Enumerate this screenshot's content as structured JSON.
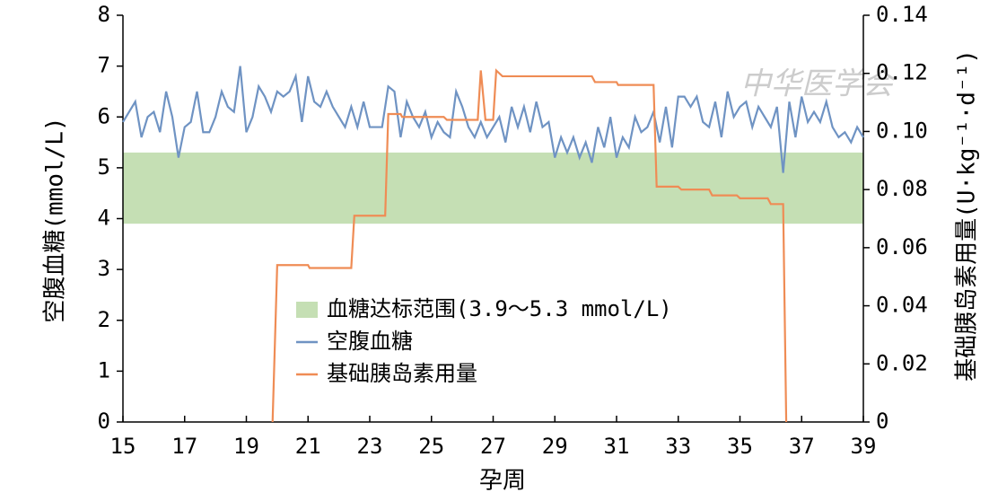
{
  "chart_data": {
    "type": "line",
    "x_label": "孕周",
    "y_label": "空腹血糖(mmol/L)",
    "y2_label": "基础胰岛素用量(U·kg⁻¹·d⁻¹)",
    "watermark": "中华医学会",
    "xlim": [
      15,
      39
    ],
    "xticks": [
      15,
      17,
      19,
      21,
      23,
      25,
      27,
      29,
      31,
      33,
      35,
      37,
      39
    ],
    "ylim": [
      0,
      8
    ],
    "yticks": [
      0,
      1,
      2,
      3,
      4,
      5,
      6,
      7,
      8
    ],
    "y2lim": [
      0,
      0.14
    ],
    "y2ticks": [
      0,
      0.02,
      0.04,
      0.06,
      0.08,
      {
        "value": 0.1,
        "label": "0.10"
      },
      0.12,
      0.14
    ],
    "band": {
      "name": "血糖达标范围(3.9～5.3 mmol/L)",
      "color": "#c5dfb4",
      "range": [
        3.9,
        5.3
      ]
    },
    "series": [
      {
        "name": "空腹血糖",
        "color": "#6f93c3",
        "x": [
          15.0,
          15.2,
          15.4,
          15.6,
          15.8,
          16.0,
          16.2,
          16.4,
          16.6,
          16.8,
          17.0,
          17.2,
          17.4,
          17.6,
          17.8,
          18.0,
          18.2,
          18.4,
          18.6,
          18.8,
          19.0,
          19.2,
          19.4,
          19.6,
          19.8,
          20.0,
          20.2,
          20.4,
          20.6,
          20.8,
          21.0,
          21.2,
          21.4,
          21.6,
          21.8,
          22.0,
          22.2,
          22.4,
          22.6,
          22.8,
          23.0,
          23.2,
          23.4,
          23.6,
          23.8,
          24.0,
          24.2,
          24.4,
          24.6,
          24.8,
          25.0,
          25.2,
          25.4,
          25.6,
          25.8,
          26.0,
          26.2,
          26.4,
          26.6,
          26.8,
          27.0,
          27.2,
          27.4,
          27.6,
          27.8,
          28.0,
          28.2,
          28.4,
          28.6,
          28.8,
          29.0,
          29.2,
          29.4,
          29.6,
          29.8,
          30.0,
          30.2,
          30.4,
          30.6,
          30.8,
          31.0,
          31.2,
          31.4,
          31.6,
          31.8,
          32.0,
          32.2,
          32.4,
          32.6,
          32.8,
          33.0,
          33.2,
          33.4,
          33.6,
          33.8,
          34.0,
          34.2,
          34.4,
          34.6,
          34.8,
          35.0,
          35.2,
          35.4,
          35.6,
          35.8,
          36.0,
          36.2,
          36.4,
          36.6,
          36.8,
          37.0,
          37.2,
          37.4,
          37.6,
          37.8,
          38.0,
          38.2,
          38.4,
          38.6,
          38.8,
          39.0
        ],
        "values": [
          5.9,
          6.1,
          6.3,
          5.6,
          6.0,
          6.1,
          5.7,
          6.5,
          6.0,
          5.2,
          5.8,
          5.9,
          6.5,
          5.7,
          5.7,
          6.0,
          6.5,
          6.2,
          6.1,
          7.0,
          5.7,
          6.0,
          6.6,
          6.4,
          6.1,
          6.5,
          6.4,
          6.5,
          6.8,
          5.9,
          6.8,
          6.3,
          6.2,
          6.5,
          6.2,
          6.0,
          5.8,
          6.2,
          5.8,
          6.3,
          5.8,
          5.8,
          5.8,
          6.6,
          6.5,
          5.6,
          6.3,
          6.0,
          5.8,
          6.1,
          5.6,
          5.9,
          5.7,
          5.6,
          6.5,
          6.2,
          5.8,
          5.6,
          5.9,
          5.6,
          5.8,
          6.0,
          5.5,
          6.2,
          5.8,
          6.2,
          5.7,
          6.3,
          5.8,
          5.9,
          5.2,
          5.6,
          5.3,
          5.6,
          5.2,
          5.5,
          5.1,
          5.8,
          5.4,
          6.0,
          5.2,
          5.6,
          5.4,
          6.0,
          5.7,
          5.8,
          6.1,
          5.5,
          6.2,
          5.4,
          6.4,
          6.4,
          6.2,
          6.4,
          5.9,
          5.8,
          6.3,
          5.6,
          6.5,
          6.0,
          6.2,
          6.3,
          5.8,
          6.2,
          6.0,
          5.8,
          6.2,
          4.9,
          6.3,
          5.6,
          6.4,
          5.9,
          6.1,
          5.9,
          6.3,
          5.8,
          5.6,
          5.7,
          5.5,
          5.8,
          5.6
        ]
      },
      {
        "name": "基础胰岛素用量",
        "color": "#ef8c55",
        "axis": "y2",
        "x": [
          19.85,
          20.0,
          21.0,
          21.05,
          22.4,
          22.5,
          23.5,
          23.6,
          24.0,
          24.05,
          25.4,
          25.5,
          26.5,
          26.6,
          26.75,
          27.0,
          27.1,
          27.3,
          30.2,
          30.3,
          31.0,
          31.05,
          32.2,
          32.3,
          33.0,
          33.1,
          34.0,
          34.1,
          34.9,
          35.0,
          35.9,
          36.0,
          36.4,
          36.5
        ],
        "values": [
          0,
          0.054,
          0.054,
          0.053,
          0.053,
          0.071,
          0.071,
          0.106,
          0.106,
          0.105,
          0.105,
          0.104,
          0.104,
          0.121,
          0.104,
          0.104,
          0.121,
          0.119,
          0.119,
          0.117,
          0.117,
          0.116,
          0.116,
          0.081,
          0.081,
          0.08,
          0.08,
          0.078,
          0.078,
          0.077,
          0.077,
          0.075,
          0.075,
          0
        ]
      }
    ]
  }
}
